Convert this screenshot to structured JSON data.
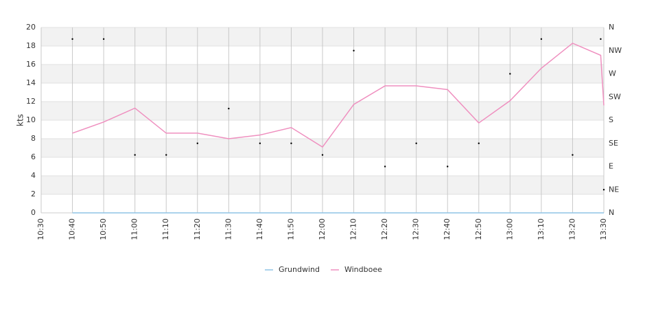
{
  "chart_data": {
    "type": "line",
    "y_label": "kts",
    "x": [
      "10:40",
      "10:50",
      "11:00",
      "11:10",
      "11:20",
      "11:30",
      "11:40",
      "11:50",
      "12:00",
      "12:10",
      "12:20",
      "12:30",
      "12:40",
      "12:50",
      "13:00",
      "13:10",
      "13:20",
      "13:29",
      "13:30"
    ],
    "series": [
      {
        "name": "Grundwind",
        "color": "#8ec3e6",
        "values": [
          0,
          0,
          0,
          0,
          0,
          0,
          0,
          0,
          0,
          0,
          0,
          0,
          0,
          0,
          0,
          0,
          0,
          0,
          0
        ]
      },
      {
        "name": "Windboee",
        "color": "#ef8fbf",
        "values": [
          8.6,
          9.8,
          11.3,
          8.6,
          8.6,
          8.0,
          8.4,
          9.2,
          7.1,
          11.7,
          13.7,
          13.7,
          13.3,
          9.7,
          12.1,
          15.6,
          18.3,
          17.0,
          11.6
        ]
      }
    ],
    "direction": {
      "color": "#000000",
      "values": [
        337.5,
        337.5,
        112.5,
        112.5,
        135,
        202.5,
        135,
        135,
        112.5,
        315,
        90,
        135,
        90,
        135,
        270,
        337.5,
        112.5,
        337.5,
        45
      ],
      "axis": "y2"
    },
    "xlim": [
      "10:30",
      "13:30"
    ],
    "xticks": [
      "10:30",
      "10:40",
      "10:50",
      "11:00",
      "11:10",
      "11:20",
      "11:30",
      "11:40",
      "11:50",
      "12:00",
      "12:10",
      "12:20",
      "12:30",
      "12:40",
      "12:50",
      "13:00",
      "13:10",
      "13:20",
      "13:30"
    ],
    "ylim": [
      0,
      20
    ],
    "yticks": [
      0,
      2,
      4,
      6,
      8,
      10,
      12,
      14,
      16,
      18,
      20
    ],
    "y2lim": [
      0,
      360
    ],
    "y2ticks": [
      {
        "value": 0,
        "label": "N"
      },
      {
        "value": 45,
        "label": "NE"
      },
      {
        "value": 90,
        "label": "E"
      },
      {
        "value": 135,
        "label": "SE"
      },
      {
        "value": 180,
        "label": "S"
      },
      {
        "value": 225,
        "label": "SW"
      },
      {
        "value": 270,
        "label": "W"
      },
      {
        "value": 315,
        "label": "NW"
      },
      {
        "value": 360,
        "label": "N"
      }
    ],
    "grid": true,
    "legend": "bottom"
  }
}
